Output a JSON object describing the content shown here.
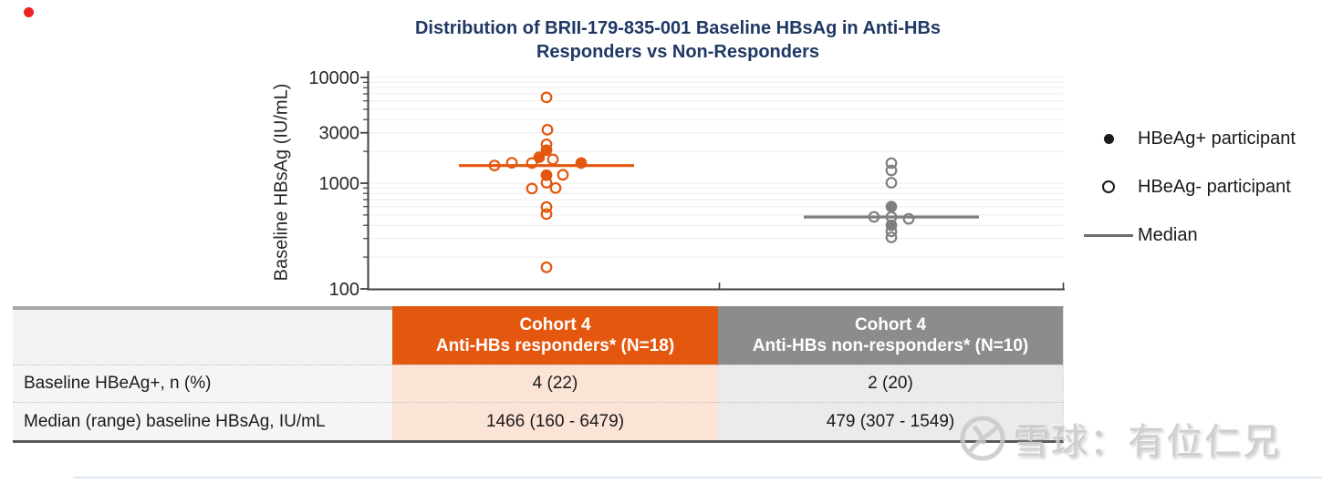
{
  "title": {
    "line1": "Distribution of BRII-179-835-001 Baseline HBsAg in Anti-HBs",
    "line2": "Responders vs Non-Responders",
    "color": "#1F3864"
  },
  "legend": {
    "items": [
      {
        "label": "HBeAg+ participant",
        "marker": "filled-circle"
      },
      {
        "label": "HBeAg- participant",
        "marker": "open-circle"
      },
      {
        "label": "Median",
        "marker": "line"
      }
    ]
  },
  "table": {
    "header": {
      "responders_line1": "Cohort 4",
      "responders_line2": "Anti-HBs responders* (N=18)",
      "non_responders_line1": "Cohort 4",
      "non_responders_line2": "Anti-HBs non-responders* (N=10)"
    },
    "rows": [
      {
        "label": "Baseline HBeAg+, n (%)",
        "responders": "4 (22)",
        "non_responders": "2 (20)"
      },
      {
        "label": "Median (range) baseline HBsAg, IU/mL",
        "responders": "1466 (160 - 6479)",
        "non_responders": "479 (307 - 1549)"
      }
    ],
    "colors": {
      "responders_header_bg": "#E4570E",
      "non_responders_header_bg": "#8C8C8C",
      "responders_cell_bg": "#FBE3D6",
      "non_responders_cell_bg": "#EBEBEB"
    }
  },
  "watermark": {
    "text": "雪球：有位仁兄",
    "logo": "xueqiu-logo"
  },
  "chart_data": {
    "type": "scatter",
    "title": "Distribution of BRII-179-835-001 Baseline HBsAg in Anti-HBs Responders vs Non-Responders",
    "ylabel": "Baseline HBsAg (IU/mL)",
    "yscale": "log",
    "ylim": [
      100,
      10000
    ],
    "yticks": [
      {
        "label": "10000",
        "value": 10000
      },
      {
        "label": "3000",
        "value": 3000
      },
      {
        "label": "1000",
        "value": 1000
      },
      {
        "label": "100",
        "value": 100
      }
    ],
    "grid": "horizontal-log-minor",
    "legend_position": "right",
    "groups": [
      {
        "name": "Cohort 4 Anti-HBs responders* (N=18)",
        "color": "#E4570E",
        "n": 18,
        "median": 1466,
        "range_min": 160,
        "range_max": 6479,
        "points": [
          {
            "value": 6479,
            "filled": false,
            "dx": 0
          },
          {
            "value": 3200,
            "filled": false,
            "dx": 1
          },
          {
            "value": 2330,
            "filled": false,
            "dx": 0
          },
          {
            "value": 2050,
            "filled": true,
            "dx": 0
          },
          {
            "value": 1760,
            "filled": true,
            "dx": -8
          },
          {
            "value": 1680,
            "filled": false,
            "dx": 7
          },
          {
            "value": 1560,
            "filled": false,
            "dx": -38
          },
          {
            "value": 1550,
            "filled": false,
            "dx": -16
          },
          {
            "value": 1550,
            "filled": true,
            "dx": 38
          },
          {
            "value": 1470,
            "filled": false,
            "dx": -57
          },
          {
            "value": 1200,
            "filled": false,
            "dx": 18
          },
          {
            "value": 1190,
            "filled": true,
            "dx": 0
          },
          {
            "value": 1010,
            "filled": false,
            "dx": 0
          },
          {
            "value": 900,
            "filled": false,
            "dx": 10
          },
          {
            "value": 890,
            "filled": false,
            "dx": -16
          },
          {
            "value": 595,
            "filled": false,
            "dx": 0
          },
          {
            "value": 510,
            "filled": false,
            "dx": 0
          },
          {
            "value": 160,
            "filled": false,
            "dx": 0
          }
        ]
      },
      {
        "name": "Cohort 4 Anti-HBs non-responders* (N=10)",
        "color": "#7F7F7F",
        "n": 10,
        "median": 479,
        "range_min": 307,
        "range_max": 1549,
        "points": [
          {
            "value": 1549,
            "filled": false,
            "dx": 0
          },
          {
            "value": 1320,
            "filled": false,
            "dx": 0
          },
          {
            "value": 1010,
            "filled": false,
            "dx": 0
          },
          {
            "value": 600,
            "filled": true,
            "dx": 0
          },
          {
            "value": 480,
            "filled": false,
            "dx": -19
          },
          {
            "value": 479,
            "filled": false,
            "dx": 0
          },
          {
            "value": 460,
            "filled": false,
            "dx": 19
          },
          {
            "value": 400,
            "filled": true,
            "dx": 0
          },
          {
            "value": 350,
            "filled": false,
            "dx": 0
          },
          {
            "value": 307,
            "filled": false,
            "dx": 0
          }
        ]
      }
    ]
  }
}
